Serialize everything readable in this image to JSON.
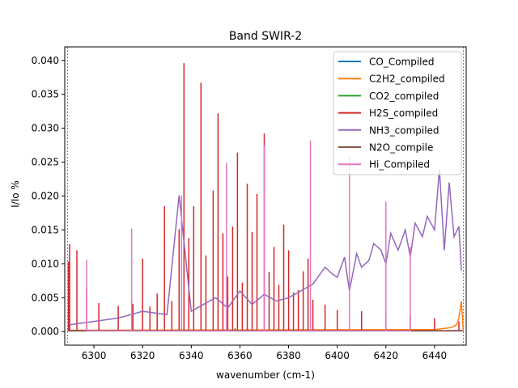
{
  "chart_data": {
    "type": "line",
    "title": "Band SWIR-2",
    "xlabel": "wavenumber (cm-1)",
    "ylabel": "I/Io %",
    "xlim": [
      6288,
      6453
    ],
    "ylim": [
      -0.002,
      0.042
    ],
    "xticks": [
      6300,
      6320,
      6340,
      6360,
      6380,
      6400,
      6420,
      6440
    ],
    "yticks": [
      0.0,
      0.005,
      0.01,
      0.015,
      0.02,
      0.025,
      0.03,
      0.035,
      0.04
    ],
    "xtick_labels": [
      "6300",
      "6320",
      "6340",
      "6360",
      "6380",
      "6400",
      "6420",
      "6440"
    ],
    "ytick_labels": [
      "0.000",
      "0.005",
      "0.010",
      "0.015",
      "0.020",
      "0.025",
      "0.030",
      "0.035",
      "0.040"
    ],
    "band_edges": [
      6289.2,
      6451.8
    ],
    "band_edge_color": "#008000",
    "legend_position": "upper right",
    "series": [
      {
        "name": "CO_Compiled",
        "color": "#1f77b4",
        "x": [
          6289.2,
          6451.8
        ],
        "y": [
          0.0001,
          0.0001
        ]
      },
      {
        "name": "C2H2_compiled",
        "color": "#ff7f0e",
        "x": [
          6289.2,
          6440,
          6447,
          6449,
          6450,
          6450.6,
          6451,
          6451.8
        ],
        "y": [
          0.0002,
          0.0003,
          0.0006,
          0.001,
          0.002,
          0.0035,
          0.0045,
          0.0002
        ]
      },
      {
        "name": "CO2_compiled",
        "color": "#2ca02c",
        "x": [
          6289.2,
          6335,
          6336,
          6337,
          6357,
          6358,
          6359,
          6451.8
        ],
        "y": [
          0.0001,
          0.0001,
          0.0008,
          0.0001,
          0.0001,
          0.0005,
          0.0001,
          0.0001
        ]
      },
      {
        "name": "H2S_compiled",
        "color": "#d62728",
        "x": [
          6289.5,
          6290,
          6293,
          6297,
          6302,
          6310,
          6316,
          6320,
          6323,
          6326,
          6329,
          6332,
          6335,
          6337,
          6339,
          6341,
          6344,
          6346,
          6349,
          6351,
          6353,
          6355,
          6357,
          6359,
          6361,
          6363,
          6365,
          6367,
          6370,
          6372,
          6374,
          6376,
          6378,
          6380,
          6382,
          6384,
          6386,
          6388,
          6390,
          6395,
          6400,
          6410,
          6420,
          6430,
          6440,
          6450
        ],
        "y": [
          0.0103,
          0.0129,
          0.012,
          0.0063,
          0.0042,
          0.0038,
          0.0041,
          0.0108,
          0.0037,
          0.0056,
          0.0185,
          0.0045,
          0.0151,
          0.0396,
          0.0138,
          0.0185,
          0.0367,
          0.0112,
          0.0208,
          0.0322,
          0.0145,
          0.0081,
          0.0155,
          0.0264,
          0.0072,
          0.0218,
          0.0147,
          0.0203,
          0.0292,
          0.0088,
          0.0125,
          0.0069,
          0.0158,
          0.012,
          0.0058,
          0.0061,
          0.0089,
          0.0108,
          0.0047,
          0.004,
          0.0032,
          0.003,
          0.0028,
          0.0025,
          0.002,
          0.0015
        ]
      },
      {
        "name": "NH3_compiled",
        "color": "#9467bd",
        "x": [
          6290,
          6300,
          6310,
          6320,
          6330,
          6335,
          6340,
          6345,
          6350,
          6355,
          6360,
          6365,
          6370,
          6375,
          6380,
          6385,
          6390,
          6395,
          6398,
          6400,
          6403,
          6405,
          6408,
          6410,
          6413,
          6415,
          6418,
          6420,
          6422,
          6425,
          6428,
          6430,
          6432,
          6435,
          6437,
          6440,
          6442,
          6444,
          6446,
          6448,
          6450,
          6451
        ],
        "y": [
          0.001,
          0.0015,
          0.002,
          0.003,
          0.0025,
          0.0201,
          0.003,
          0.004,
          0.005,
          0.0035,
          0.006,
          0.004,
          0.0055,
          0.0045,
          0.005,
          0.006,
          0.007,
          0.0095,
          0.0085,
          0.008,
          0.011,
          0.006,
          0.0115,
          0.0095,
          0.0105,
          0.013,
          0.012,
          0.01,
          0.0145,
          0.012,
          0.015,
          0.011,
          0.016,
          0.014,
          0.017,
          0.015,
          0.024,
          0.012,
          0.022,
          0.014,
          0.0155,
          0.009
        ]
      },
      {
        "name": "N2O_compile",
        "color": "#8c564b",
        "x": [
          6289.2,
          6451.8
        ],
        "y": [
          0.00015,
          0.00015
        ]
      },
      {
        "name": "Hi_Compiled",
        "color": "#e377c2",
        "x": [
          6297,
          6315.5,
          6336,
          6354.5,
          6370,
          6389,
          6405,
          6420,
          6430
        ],
        "y": [
          0.0106,
          0.0152,
          0.0201,
          0.0249,
          0.0275,
          0.0282,
          0.0258,
          0.0192,
          0.0125
        ]
      }
    ]
  }
}
